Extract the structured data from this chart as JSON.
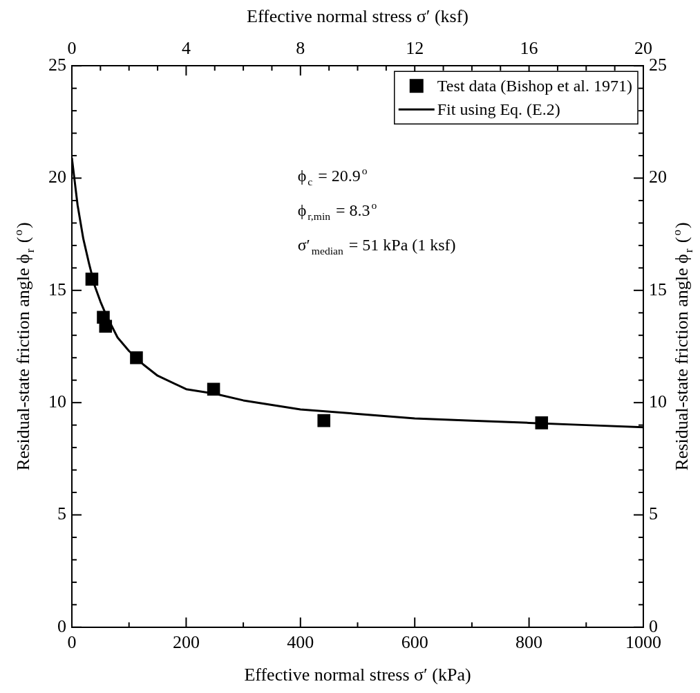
{
  "chart_data": {
    "type": "scatter",
    "xlabel": "Effective normal stress σ′ (kPa)",
    "x2label": "Effective normal stress σ′ (ksf)",
    "ylabel": "Residual-state friction angle ϕ$_{r}$ ($^{o}$)",
    "y2label": "Residual-state friction angle ϕ$_{r}$ ($^{o}$)",
    "series": [
      {
        "name": "Test data (Bishop et al. 1971)",
        "color": "#000000",
        "marker": "square",
        "x": [
          35,
          55,
          59,
          113,
          248,
          441,
          822
        ],
        "values": [
          15.5,
          13.8,
          13.4,
          12.0,
          10.6,
          9.2,
          9.1
        ]
      },
      {
        "name": "Fit using Eq. (E.2)",
        "type": "line",
        "color": "#000000",
        "marker": "none",
        "line_style": "solid",
        "x": [
          0,
          10,
          20,
          30,
          40,
          50,
          60,
          80,
          100,
          125,
          150,
          200,
          250,
          300,
          400,
          500,
          600,
          700,
          800,
          900,
          1000
        ],
        "values": [
          20.9,
          18.8,
          17.3,
          16.2,
          15.2,
          14.5,
          13.9,
          12.9,
          12.3,
          11.7,
          11.2,
          10.6,
          10.4,
          10.1,
          9.7,
          9.5,
          9.3,
          9.2,
          9.1,
          9.0,
          8.9
        ]
      }
    ],
    "annotations": [
      "ϕ$_{c}$ = 20.9$^{o}$",
      "ϕ$_{r,min}$ = 8.3$^{o}$",
      "σ′$_{median}$ = 51 kPa (1 ksf)"
    ],
    "xlim": [
      0,
      1000
    ],
    "xticks": [
      0,
      {
        "value": 100,
        "label": null
      },
      200,
      {
        "value": 300,
        "label": null
      },
      400,
      {
        "value": 500,
        "label": null
      },
      600,
      {
        "value": 700,
        "label": null
      },
      800,
      {
        "value": 900,
        "label": null
      },
      1000
    ],
    "x2lim": [
      0,
      20
    ],
    "x2ticks": [
      0,
      {
        "value": 1,
        "label": null
      },
      {
        "value": 2,
        "label": null
      },
      {
        "value": 3,
        "label": null
      },
      4,
      {
        "value": 5,
        "label": null
      },
      {
        "value": 6,
        "label": null
      },
      {
        "value": 7,
        "label": null
      },
      8,
      {
        "value": 9,
        "label": null
      },
      {
        "value": 10,
        "label": null
      },
      {
        "value": 11,
        "label": null
      },
      12,
      {
        "value": 13,
        "label": null
      },
      {
        "value": 14,
        "label": null
      },
      {
        "value": 15,
        "label": null
      },
      16,
      {
        "value": 17,
        "label": null
      },
      {
        "value": 18,
        "label": null
      },
      {
        "value": 19,
        "label": null
      },
      20
    ],
    "ylim": [
      0,
      25
    ],
    "yticks": [
      0,
      {
        "value": 1,
        "label": null
      },
      {
        "value": 2,
        "label": null
      },
      {
        "value": 3,
        "label": null
      },
      {
        "value": 4,
        "label": null
      },
      5,
      {
        "value": 6,
        "label": null
      },
      {
        "value": 7,
        "label": null
      },
      {
        "value": 8,
        "label": null
      },
      {
        "value": 9,
        "label": null
      },
      10,
      {
        "value": 11,
        "label": null
      },
      {
        "value": 12,
        "label": null
      },
      {
        "value": 13,
        "label": null
      },
      {
        "value": 14,
        "label": null
      },
      15,
      {
        "value": 16,
        "label": null
      },
      {
        "value": 17,
        "label": null
      },
      {
        "value": 18,
        "label": null
      },
      {
        "value": 19,
        "label": null
      },
      20,
      {
        "value": 21,
        "label": null
      },
      {
        "value": 22,
        "label": null
      },
      {
        "value": 23,
        "label": null
      },
      {
        "value": 24,
        "label": null
      },
      25
    ],
    "y2lim": [
      0,
      25
    ],
    "y2ticks": [
      0,
      {
        "value": 1,
        "label": null
      },
      {
        "value": 2,
        "label": null
      },
      {
        "value": 3,
        "label": null
      },
      {
        "value": 4,
        "label": null
      },
      5,
      {
        "value": 6,
        "label": null
      },
      {
        "value": 7,
        "label": null
      },
      {
        "value": 8,
        "label": null
      },
      {
        "value": 9,
        "label": null
      },
      10,
      {
        "value": 11,
        "label": null
      },
      {
        "value": 12,
        "label": null
      },
      {
        "value": 13,
        "label": null
      },
      {
        "value": 14,
        "label": null
      },
      15,
      {
        "value": 16,
        "label": null
      },
      {
        "value": 17,
        "label": null
      },
      {
        "value": 18,
        "label": null
      },
      {
        "value": 19,
        "label": null
      },
      20,
      {
        "value": 21,
        "label": null
      },
      {
        "value": 22,
        "label": null
      },
      {
        "value": 23,
        "label": null
      },
      {
        "value": 24,
        "label": null
      },
      25
    ],
    "grid": false,
    "legend": "top right"
  }
}
